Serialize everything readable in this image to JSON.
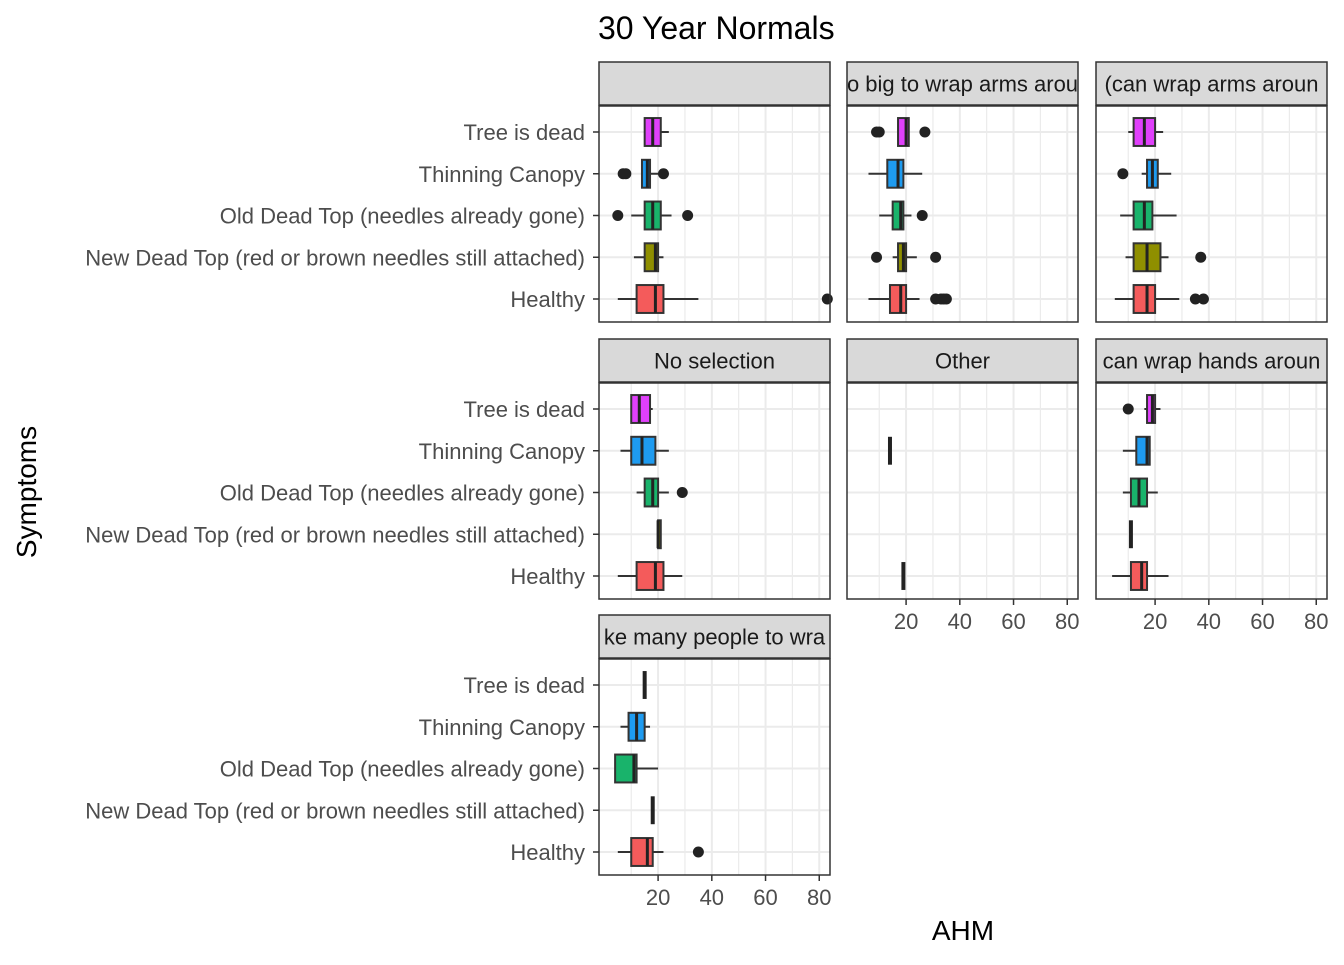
{
  "chart_data": {
    "type": "box",
    "title": "30 Year Normals",
    "xlabel": "AHM",
    "ylabel": "Symptoms",
    "xlim": [
      -2,
      84
    ],
    "x_ticks": [
      20,
      40,
      60,
      80
    ],
    "grid": true,
    "legend": "none",
    "categories": [
      "Tree is dead",
      "Thinning Canopy",
      "Old Dead Top (needles already gone)",
      "New Dead Top (red or brown needles still attached)",
      "Healthy"
    ],
    "category_colors": {
      "Tree is dead": "#e040fb",
      "Thinning Canopy": "#1e9bf0",
      "Old Dead Top (needles already gone)": "#19b36b",
      "New Dead Top (red or brown needles still attached)": "#8f8f00",
      "Healthy": "#f45b5b"
    },
    "panels": [
      {
        "strip": "",
        "boxes": [
          {
            "category": "Tree is dead",
            "whisker_low": 15,
            "q1": 15,
            "median": 18,
            "q3": 21,
            "whisker_high": 24,
            "outliers": []
          },
          {
            "category": "Thinning Canopy",
            "whisker_low": 14,
            "q1": 14,
            "median": 16,
            "q3": 17,
            "whisker_high": 20,
            "outliers": [
              7,
              8,
              22
            ]
          },
          {
            "category": "Old Dead Top (needles already gone)",
            "whisker_low": 10,
            "q1": 15,
            "median": 18,
            "q3": 21,
            "whisker_high": 25,
            "outliers": [
              5,
              31
            ]
          },
          {
            "category": "New Dead Top (red or brown needles still attached)",
            "whisker_low": 11,
            "q1": 15,
            "median": 19,
            "q3": 20,
            "whisker_high": 22,
            "outliers": []
          },
          {
            "category": "Healthy",
            "whisker_low": 5,
            "q1": 12,
            "median": 19,
            "q3": 22,
            "whisker_high": 35,
            "outliers": [
              83
            ]
          }
        ]
      },
      {
        "strip": "o big to wrap arms arou",
        "boxes": [
          {
            "category": "Tree is dead",
            "whisker_low": 17,
            "q1": 17,
            "median": 20,
            "q3": 21,
            "whisker_high": 21,
            "outliers": [
              9,
              10,
              27
            ]
          },
          {
            "category": "Thinning Canopy",
            "whisker_low": 6,
            "q1": 13,
            "median": 17,
            "q3": 19,
            "whisker_high": 26,
            "outliers": []
          },
          {
            "category": "Old Dead Top (needles already gone)",
            "whisker_low": 10,
            "q1": 15,
            "median": 18,
            "q3": 19,
            "whisker_high": 22,
            "outliers": [
              26
            ]
          },
          {
            "category": "New Dead Top (red or brown needles still attached)",
            "whisker_low": 15,
            "q1": 17,
            "median": 19,
            "q3": 20,
            "whisker_high": 24,
            "outliers": [
              9,
              31
            ]
          },
          {
            "category": "Healthy",
            "whisker_low": 6,
            "q1": 14,
            "median": 18,
            "q3": 20,
            "whisker_high": 25,
            "outliers": [
              31,
              33,
              34,
              35
            ]
          }
        ]
      },
      {
        "strip": "(can wrap arms aroun",
        "boxes": [
          {
            "category": "Tree is dead",
            "whisker_low": 10,
            "q1": 12,
            "median": 16,
            "q3": 20,
            "whisker_high": 23,
            "outliers": []
          },
          {
            "category": "Thinning Canopy",
            "whisker_low": 15,
            "q1": 17,
            "median": 19,
            "q3": 21,
            "whisker_high": 26,
            "outliers": [
              8
            ]
          },
          {
            "category": "Old Dead Top (needles already gone)",
            "whisker_low": 7,
            "q1": 12,
            "median": 16,
            "q3": 19,
            "whisker_high": 28,
            "outliers": []
          },
          {
            "category": "New Dead Top (red or brown needles still attached)",
            "whisker_low": 9,
            "q1": 12,
            "median": 17,
            "q3": 22,
            "whisker_high": 25,
            "outliers": [
              37
            ]
          },
          {
            "category": "Healthy",
            "whisker_low": 5,
            "q1": 12,
            "median": 17,
            "q3": 20,
            "whisker_high": 29,
            "outliers": [
              35,
              38
            ]
          }
        ]
      },
      {
        "strip": "No selection",
        "boxes": [
          {
            "category": "Tree is dead",
            "whisker_low": 10,
            "q1": 10,
            "median": 13,
            "q3": 17,
            "whisker_high": 18,
            "outliers": []
          },
          {
            "category": "Thinning Canopy",
            "whisker_low": 6,
            "q1": 10,
            "median": 14,
            "q3": 19,
            "whisker_high": 24,
            "outliers": []
          },
          {
            "category": "Old Dead Top (needles already gone)",
            "whisker_low": 12,
            "q1": 15,
            "median": 18,
            "q3": 20,
            "whisker_high": 24,
            "outliers": [
              29
            ]
          },
          {
            "category": "New Dead Top (red or brown needles still attached)",
            "whisker_low": 20,
            "q1": 20,
            "median": 20,
            "q3": 21,
            "whisker_high": 21,
            "outliers": []
          },
          {
            "category": "Healthy",
            "whisker_low": 5,
            "q1": 12,
            "median": 19,
            "q3": 22,
            "whisker_high": 29,
            "outliers": []
          }
        ]
      },
      {
        "strip": "Other",
        "boxes": [
          {
            "category": "Thinning Canopy",
            "whisker_low": 14,
            "q1": 14,
            "median": 14,
            "q3": 14,
            "whisker_high": 14,
            "outliers": []
          },
          {
            "category": "Healthy",
            "whisker_low": 19,
            "q1": 19,
            "median": 19,
            "q3": 19,
            "whisker_high": 19,
            "outliers": []
          }
        ]
      },
      {
        "strip": "can wrap hands aroun",
        "boxes": [
          {
            "category": "Tree is dead",
            "whisker_low": 16,
            "q1": 17,
            "median": 19,
            "q3": 20,
            "whisker_high": 22,
            "outliers": [
              10
            ]
          },
          {
            "category": "Thinning Canopy",
            "whisker_low": 8,
            "q1": 13,
            "median": 17,
            "q3": 18,
            "whisker_high": 18,
            "outliers": []
          },
          {
            "category": "Old Dead Top (needles already gone)",
            "whisker_low": 8,
            "q1": 11,
            "median": 14,
            "q3": 17,
            "whisker_high": 21,
            "outliers": []
          },
          {
            "category": "New Dead Top (red or brown needles still attached)",
            "whisker_low": 11,
            "q1": 11,
            "median": 11,
            "q3": 11,
            "whisker_high": 11,
            "outliers": []
          },
          {
            "category": "Healthy",
            "whisker_low": 4,
            "q1": 11,
            "median": 15,
            "q3": 17,
            "whisker_high": 25,
            "outliers": []
          }
        ]
      },
      {
        "strip": "ke many people to wra",
        "boxes": [
          {
            "category": "Tree is dead",
            "whisker_low": 15,
            "q1": 15,
            "median": 15,
            "q3": 15,
            "whisker_high": 15,
            "outliers": []
          },
          {
            "category": "Thinning Canopy",
            "whisker_low": 6,
            "q1": 9,
            "median": 12,
            "q3": 15,
            "whisker_high": 17,
            "outliers": []
          },
          {
            "category": "Old Dead Top (needles already gone)",
            "whisker_low": 4,
            "q1": 4,
            "median": 11,
            "q3": 12,
            "whisker_high": 20,
            "outliers": []
          },
          {
            "category": "New Dead Top (red or brown needles still attached)",
            "whisker_low": 18,
            "q1": 18,
            "median": 18,
            "q3": 18,
            "whisker_high": 18,
            "outliers": []
          },
          {
            "category": "Healthy",
            "whisker_low": 5,
            "q1": 10,
            "median": 16,
            "q3": 18,
            "whisker_high": 22,
            "outliers": [
              35
            ]
          }
        ]
      }
    ]
  }
}
